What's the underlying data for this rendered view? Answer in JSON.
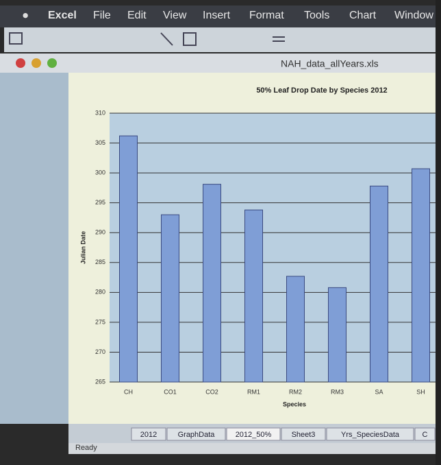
{
  "menu": {
    "app": "Excel",
    "items": [
      "File",
      "Edit",
      "View",
      "Insert",
      "Format",
      "Tools",
      "Chart",
      "Window"
    ]
  },
  "window": {
    "title": "NAH_data_allYears.xls"
  },
  "chart_data": {
    "type": "bar",
    "title": "50% Leaf Drop Date by Species 2012",
    "x_label": "Species",
    "y_label": "Julian Date",
    "categories": [
      "CH",
      "CO1",
      "CO2",
      "RM1",
      "RM2",
      "RM3",
      "SA",
      "SH"
    ],
    "values": [
      306.2,
      293.0,
      298.1,
      293.8,
      282.7,
      280.8,
      297.8,
      300.7
    ],
    "color": "#7f9ed6",
    "ylim": [
      265,
      310
    ],
    "yticks": [
      265,
      270,
      275,
      280,
      285,
      290,
      295,
      300,
      305,
      310
    ],
    "grid": true
  },
  "sheet_tabs": [
    "2012",
    "GraphData",
    "2012_50%",
    "Sheet3",
    "Yrs_SpeciesData",
    "C"
  ],
  "status": "Ready"
}
